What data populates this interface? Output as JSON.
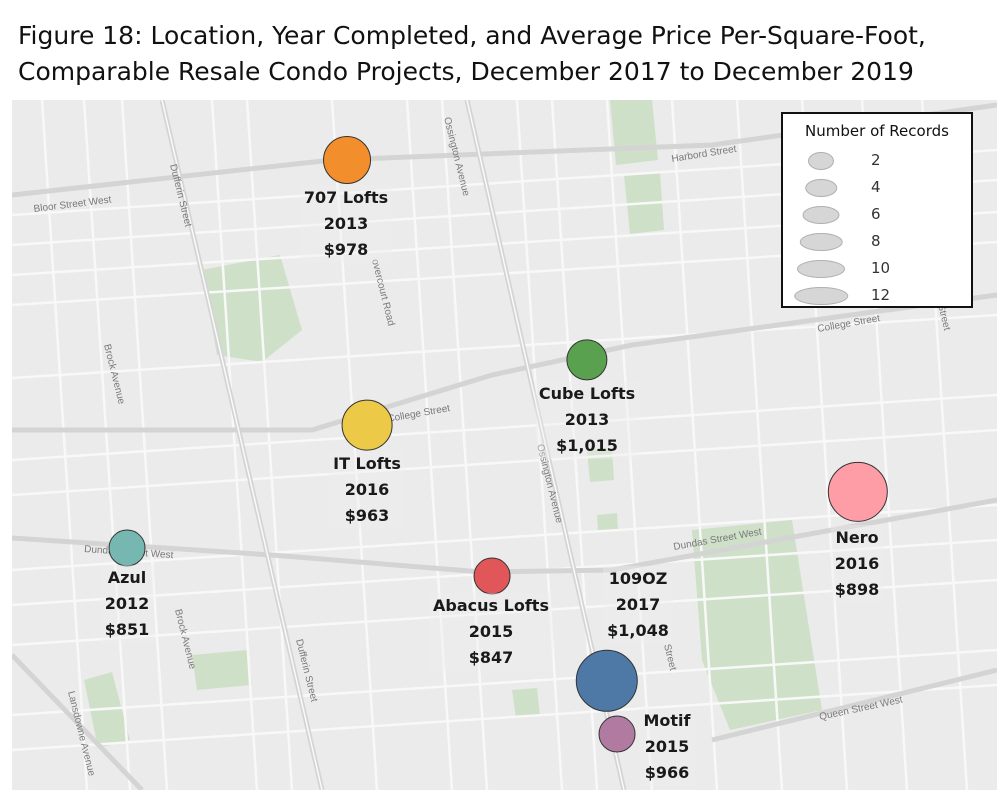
{
  "title": {
    "line1": "Figure 18: Location, Year Completed, and Average Price Per-Square-Foot,",
    "line2": "Comparable Resale Condo Projects, December 2017 to December 2019"
  },
  "streets": {
    "bloor": "Bloor Street West",
    "harbord": "Harbord Street",
    "dufferin_top": "Dufferin Street",
    "dufferin_bottom": "Dufferin Street",
    "ossington_top": "Ossington Avenue",
    "ossington_mid": "Ossington Avenue",
    "overcourt": "overcourt Road",
    "brock_top": "Brock Avenue",
    "brock_bottom": "Brock Avenue",
    "college_mid": "College Street",
    "college_right": "College Street",
    "dundas_left": "Dundas Street West",
    "dundas_right": "Dundas Street West",
    "queen": "Queen Street West",
    "lansdowne": "Lansdowne Avenue",
    "street_bottom": "Street",
    "street_right": "Street"
  },
  "legend": {
    "title": "Number of Records",
    "items": [
      {
        "label": "2",
        "value": 2
      },
      {
        "label": "4",
        "value": 4
      },
      {
        "label": "6",
        "value": 6
      },
      {
        "label": "8",
        "value": 8
      },
      {
        "label": "10",
        "value": 10
      },
      {
        "label": "12",
        "value": 12
      }
    ]
  },
  "chart_data": {
    "type": "scatter",
    "title": "Figure 18: Location, Year Completed, and Average Price Per-Square-Foot, Comparable Resale Condo Projects, December 2017 to December 2019",
    "size_field": "Number of Records",
    "projects": [
      {
        "name": "707 Lofts",
        "year": "2013",
        "price": "$978",
        "records": 5,
        "color": "#f28e2b"
      },
      {
        "name": "IT Lofts",
        "year": "2016",
        "price": "$963",
        "records": 6,
        "color": "#edc948"
      },
      {
        "name": "Cube Lofts",
        "year": "2013",
        "price": "$1,015",
        "records": 3,
        "color": "#59a14f"
      },
      {
        "name": "Nero",
        "year": "2016",
        "price": "$898",
        "records": 10,
        "color": "#ff9da7"
      },
      {
        "name": "Azul",
        "year": "2012",
        "price": "$851",
        "records": 2,
        "color": "#76b7b2"
      },
      {
        "name": "Abacus Lofts",
        "year": "2015",
        "price": "$847",
        "records": 2,
        "color": "#e15759"
      },
      {
        "name": "109OZ",
        "year": "2017",
        "price": "$1,048",
        "records": 11,
        "color": "#4e79a7"
      },
      {
        "name": "Motif",
        "year": "2015",
        "price": "$966",
        "records": 2,
        "color": "#b07aa1"
      }
    ]
  }
}
